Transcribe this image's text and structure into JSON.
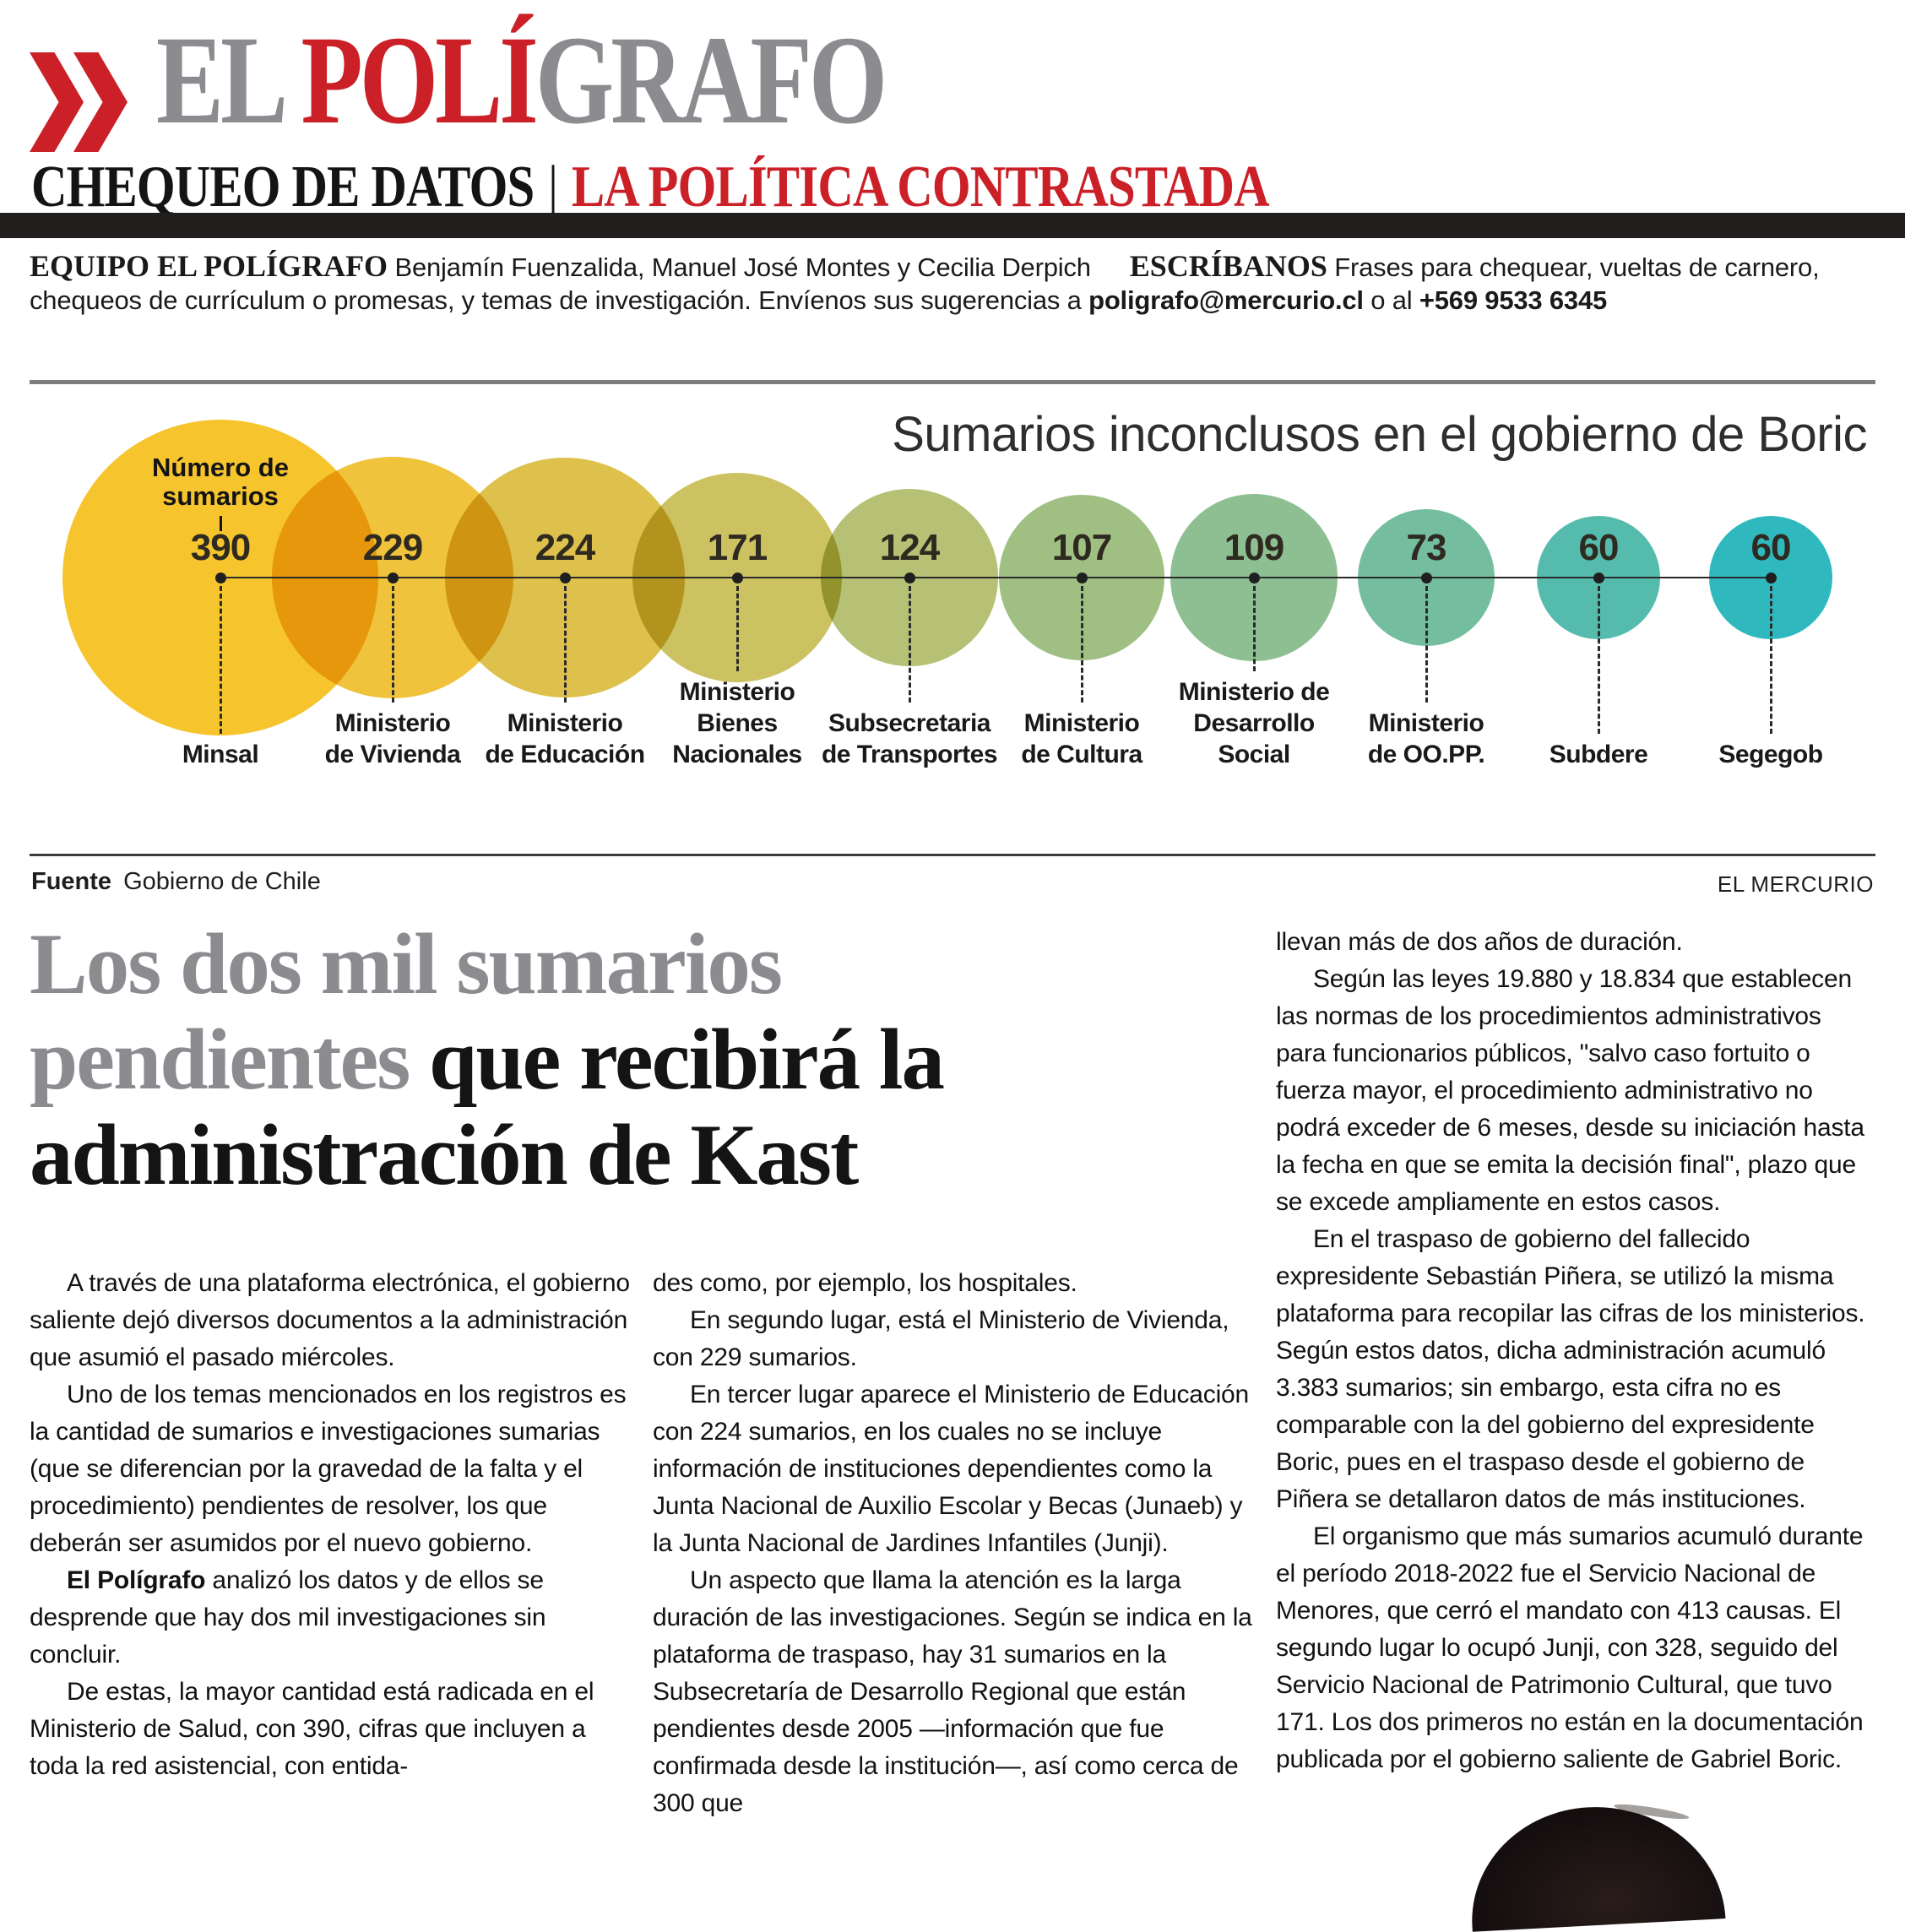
{
  "colors": {
    "accent_red": "#cb2027",
    "masthead_gray": "#8c8c90",
    "headline_gray": "#8c8c90",
    "bar_black": "#221e1d"
  },
  "masthead": {
    "title_el": "EL ",
    "title_poli": "POLÍ",
    "title_grafo": "GRAFO",
    "subtitle_black": "CHEQUEO DE DATOS",
    "subtitle_divider": "|",
    "subtitle_red": "LA POLÍTICA CONTRASTADA"
  },
  "team_bar": {
    "equipo_label": "EQUIPO EL POLÍGRAFO",
    "equipo_names": " Benjamín Fuenzalida, Manuel José Montes y Cecilia Derpich",
    "escribanos_label": "ESCRÍBANOS",
    "escribanos_text": " Frases para chequear, vueltas de carnero, chequeos de currículum o promesas, y temas de investigación. Envíenos sus sugerencias a ",
    "email": "poligrafo@mercurio.cl",
    "o_al": " o al ",
    "phone": "+569 9533 6345"
  },
  "chart_data": {
    "type": "bubble",
    "title": "Sumarios inconclusos en el gobierno de Boric",
    "annotation_lines": [
      "Número de",
      "sumarios"
    ],
    "categories": [
      "Minsal",
      "Ministerio de Vivienda",
      "Ministerio de Educación",
      "Ministerio Bienes Nacionales",
      "Subsecretaria de Transportes",
      "Ministerio de Cultura",
      "Ministerio de Desarrollo Social",
      "Ministerio de OO.PP.",
      "Subdere",
      "Segegob"
    ],
    "category_lines": [
      [
        "Minsal"
      ],
      [
        "Ministerio",
        "de Vivienda"
      ],
      [
        "Ministerio",
        "de Educación"
      ],
      [
        "Ministerio",
        "Bienes",
        "Nacionales"
      ],
      [
        "Subsecretaria",
        "de Transportes"
      ],
      [
        "Ministerio",
        "de Cultura"
      ],
      [
        "Ministerio de",
        "Desarrollo",
        "Social"
      ],
      [
        "Ministerio",
        "de OO.PP."
      ],
      [
        "Subdere"
      ],
      [
        "Segegob"
      ]
    ],
    "values": [
      390,
      229,
      224,
      171,
      124,
      107,
      109,
      73,
      60,
      60
    ],
    "colors": [
      "#f6c52e",
      "#efc33b",
      "#ddc14c",
      "#ccc262",
      "#b6c175",
      "#a0c083",
      "#8dbf92",
      "#74bd9f",
      "#55bbad",
      "#2fb9be"
    ],
    "source_label": "Fuente",
    "source": "Gobierno de Chile",
    "credit": "EL MERCURIO",
    "legend_position": "none",
    "grid": false
  },
  "article": {
    "headline": {
      "gray": "Los dos mil sumarios pendientes ",
      "black": "que recibirá la administración de Kast"
    },
    "col1": {
      "p1": "A través de una plataforma electrónica, el gobierno saliente dejó diversos documentos a la administración que asumió el pasado miércoles.",
      "p2": "Uno de los temas mencionados en los registros es la cantidad de sumarios e investigaciones sumarias (que se diferencian por la gravedad de la falta y el procedimiento) pendientes de resolver, los que deberán ser asumidos por el nuevo gobierno.",
      "p3_bold": "El Polígrafo",
      "p3_rest": " analizó los datos y de ellos se desprende que hay dos mil investigaciones sin concluir.",
      "p4": "De estas, la mayor cantidad está radicada en el Ministerio de Salud, con 390, cifras que incluyen a toda la red asistencial, con entida-"
    },
    "col2": {
      "p1": "des como, por ejemplo, los hospitales.",
      "p2": "En segundo lugar, está el Ministerio de Vivienda, con 229 sumarios.",
      "p3": "En tercer lugar aparece el Ministerio de Educación con 224 sumarios, en los cuales no se incluye información de instituciones dependientes como la Junta Nacional de Auxilio Escolar y Becas (Junaeb) y la Junta Nacional de Jardines Infantiles (Junji).",
      "p4": "Un aspecto que llama la atención es la larga duración de las investigaciones. Según se indica en la plataforma de traspaso, hay 31 sumarios en la Subsecretaría de Desarrollo Regional que están pendientes desde 2005 —información que fue confirmada desde la institución—, así como cerca de 300 que"
    },
    "col3": {
      "p1": "llevan más de dos años de duración.",
      "p2": "Según las leyes 19.880 y 18.834 que establecen las normas de los procedimientos administrativos para funcionarios públicos, \"salvo caso fortuito o fuerza mayor, el procedimiento administrativo no podrá exceder de 6 meses, desde su iniciación hasta la fecha en que se emita la decisión final\", plazo que se excede ampliamente en estos casos.",
      "p3": "En el traspaso de gobierno del fallecido expresidente Sebastián Piñera, se utilizó la misma plataforma para recopilar las cifras de los ministerios. Según estos datos, dicha administración acumuló 3.383 sumarios; sin embargo, esta cifra no es comparable con la del gobierno del expresidente Boric, pues en el traspaso desde el gobierno de Piñera se detallaron datos de más instituciones.",
      "p4": "El organismo que más sumarios acumuló durante el período 2018-2022 fue el Servicio Nacional de Menores, que cerró el mandato con 413 causas. El segundo lugar lo ocupó Junji, con 328, seguido del Servicio Nacional de Patrimonio Cultural, que tuvo 171. Los dos primeros no están en la documentación publicada por el gobierno saliente de Gabriel Boric."
    }
  }
}
